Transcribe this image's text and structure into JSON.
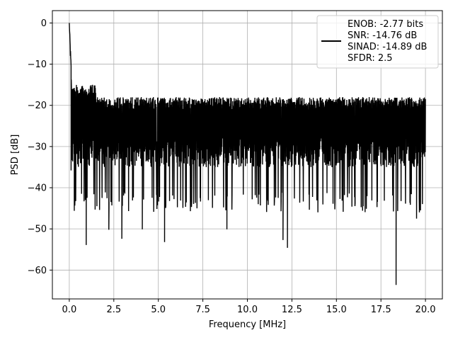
{
  "chart_data": {
    "type": "line",
    "title": "",
    "xlabel": "Frequency [MHz]",
    "ylabel": "PSD [dB]",
    "xlim": [
      -0.95,
      20.95
    ],
    "ylim": [
      -67,
      3
    ],
    "grid": true,
    "x_ticks": [
      0.0,
      2.5,
      5.0,
      7.5,
      10.0,
      12.5,
      15.0,
      17.5,
      20.0
    ],
    "x_tick_labels": [
      "0.0",
      "2.5",
      "5.0",
      "7.5",
      "10.0",
      "12.5",
      "15.0",
      "17.5",
      "20.0"
    ],
    "y_ticks": [
      0,
      -10,
      -20,
      -30,
      -40,
      -50,
      -60
    ],
    "y_tick_labels": [
      "0",
      "−10",
      "−20",
      "−30",
      "−40",
      "−50",
      "−60"
    ],
    "legend": {
      "position": "top-right",
      "entries": [
        "ENOB: -2.77 bits",
        "SNR: -14.76 dB",
        "SINAD: -14.89 dB",
        "SFDR: 2.5"
      ]
    },
    "series": [
      {
        "color": "#000000",
        "x_range": [
          0.0,
          20.0
        ],
        "noise_floor_db": [
          -41,
          -18
        ],
        "peak_db": 0,
        "notable_points": [
          {
            "x": 0.0,
            "y": 0.0
          },
          {
            "x": 0.1,
            "y": -35.8
          },
          {
            "x": 0.28,
            "y": -45.6
          },
          {
            "x": 0.95,
            "y": -53.9
          },
          {
            "x": 2.22,
            "y": -50.2
          },
          {
            "x": 2.95,
            "y": -52.4
          },
          {
            "x": 4.1,
            "y": -50.1
          },
          {
            "x": 5.35,
            "y": -53.2
          },
          {
            "x": 8.85,
            "y": -50.1
          },
          {
            "x": 12.0,
            "y": -52.7
          },
          {
            "x": 12.25,
            "y": -54.6
          },
          {
            "x": 18.35,
            "y": -63.6
          },
          {
            "x": 19.5,
            "y": -47.5
          }
        ]
      }
    ]
  }
}
